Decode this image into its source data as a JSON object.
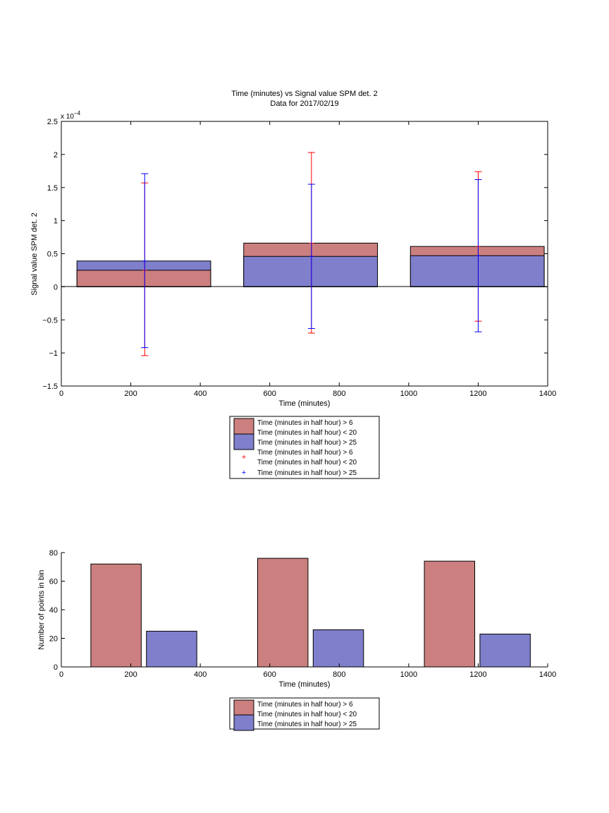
{
  "chart_data": [
    {
      "type": "bar",
      "title": "Time (minutes) vs Signal value SPM det. 2",
      "subtitle": "Data for 2017/02/19",
      "xlabel": "Time (minutes)",
      "ylabel": "Signal value SPM det. 2",
      "xlim": [
        0,
        1400
      ],
      "ylim": [
        -1.5,
        2.5
      ],
      "y_exponent_label": "x 10",
      "y_exponent_power": "−4",
      "xticks": [
        0,
        200,
        400,
        600,
        800,
        1000,
        1200,
        1400
      ],
      "xtick_labels": [
        "0",
        "200",
        "400",
        "600",
        "800",
        "1000",
        "1200",
        "1400"
      ],
      "yticks": [
        -1.5,
        -1,
        -0.5,
        0,
        0.5,
        1,
        1.5,
        2,
        2.5
      ],
      "ytick_labels": [
        "−1.5",
        "−1",
        "−0.5",
        "0",
        "0.5",
        "1",
        "1.5",
        "2",
        "2.5"
      ],
      "bar_layout": "overlaid",
      "bins": [
        {
          "start": 45,
          "end": 430,
          "center": 240
        },
        {
          "start": 525,
          "end": 910,
          "center": 720
        },
        {
          "start": 1005,
          "end": 1390,
          "center": 1200
        }
      ],
      "series": [
        {
          "name": "Time (minutes in half hour) > 6\nTime (minutes in half hour) < 20",
          "color": "#cc7f7f",
          "values": [
            0.25,
            0.66,
            0.61
          ],
          "errors": {
            "color": "#ff0000",
            "lower": [
              -1.04,
              -0.7,
              -0.52
            ],
            "upper": [
              1.57,
              2.03,
              1.74
            ]
          }
        },
        {
          "name": "Time (minutes in half hour) > 25",
          "color": "#7f7fcc",
          "values": [
            0.39,
            0.46,
            0.47
          ],
          "errors": {
            "color": "#0000ff",
            "lower": [
              -0.92,
              -0.63,
              -0.68
            ],
            "upper": [
              1.71,
              1.55,
              1.62
            ]
          }
        }
      ],
      "legend": {
        "placement": "below",
        "items": [
          {
            "kind": "patch",
            "color": "#cc7f7f",
            "lines": [
              "Time (minutes in half hour) > 6",
              "Time (minutes in half hour) < 20"
            ]
          },
          {
            "kind": "patch",
            "color": "#7f7fcc",
            "lines": [
              "Time (minutes in half hour) > 25"
            ]
          },
          {
            "kind": "marker",
            "color": "#ff0000",
            "lines": [
              "Time (minutes in half hour) > 6",
              "Time (minutes in half hour) < 20"
            ]
          },
          {
            "kind": "marker",
            "color": "#0000ff",
            "lines": [
              "Time (minutes in half hour) > 25"
            ]
          }
        ]
      }
    },
    {
      "type": "bar",
      "xlabel": "Time (minutes)",
      "ylabel": "Number of points in bin",
      "xlim": [
        0,
        1400
      ],
      "ylim": [
        0,
        80
      ],
      "xticks": [
        0,
        200,
        400,
        600,
        800,
        1000,
        1200,
        1400
      ],
      "xtick_labels": [
        "0",
        "200",
        "400",
        "600",
        "800",
        "1000",
        "1200",
        "1400"
      ],
      "yticks": [
        0,
        20,
        40,
        60,
        80
      ],
      "ytick_labels": [
        "0",
        "20",
        "40",
        "60",
        "80"
      ],
      "bar_layout": "grouped",
      "groups": [
        {
          "bars": [
            {
              "start": 85,
              "end": 230
            },
            {
              "start": 245,
              "end": 390
            }
          ]
        },
        {
          "bars": [
            {
              "start": 565,
              "end": 710
            },
            {
              "start": 725,
              "end": 870
            }
          ]
        },
        {
          "bars": [
            {
              "start": 1045,
              "end": 1190
            },
            {
              "start": 1205,
              "end": 1350
            }
          ]
        }
      ],
      "series": [
        {
          "name": "Time (minutes in half hour) > 6\nTime (minutes in half hour) < 20",
          "color": "#cc7f7f",
          "values": [
            72,
            76,
            74
          ]
        },
        {
          "name": "Time (minutes in half hour) > 25",
          "color": "#7f7fcc",
          "values": [
            25,
            26,
            23
          ]
        }
      ],
      "legend": {
        "placement": "below",
        "items": [
          {
            "kind": "patch",
            "color": "#cc7f7f",
            "lines": [
              "Time (minutes in half hour) > 6",
              "Time (minutes in half hour) < 20"
            ]
          },
          {
            "kind": "patch",
            "color": "#7f7fcc",
            "lines": [
              "Time (minutes in half hour) > 25"
            ]
          }
        ]
      }
    }
  ]
}
